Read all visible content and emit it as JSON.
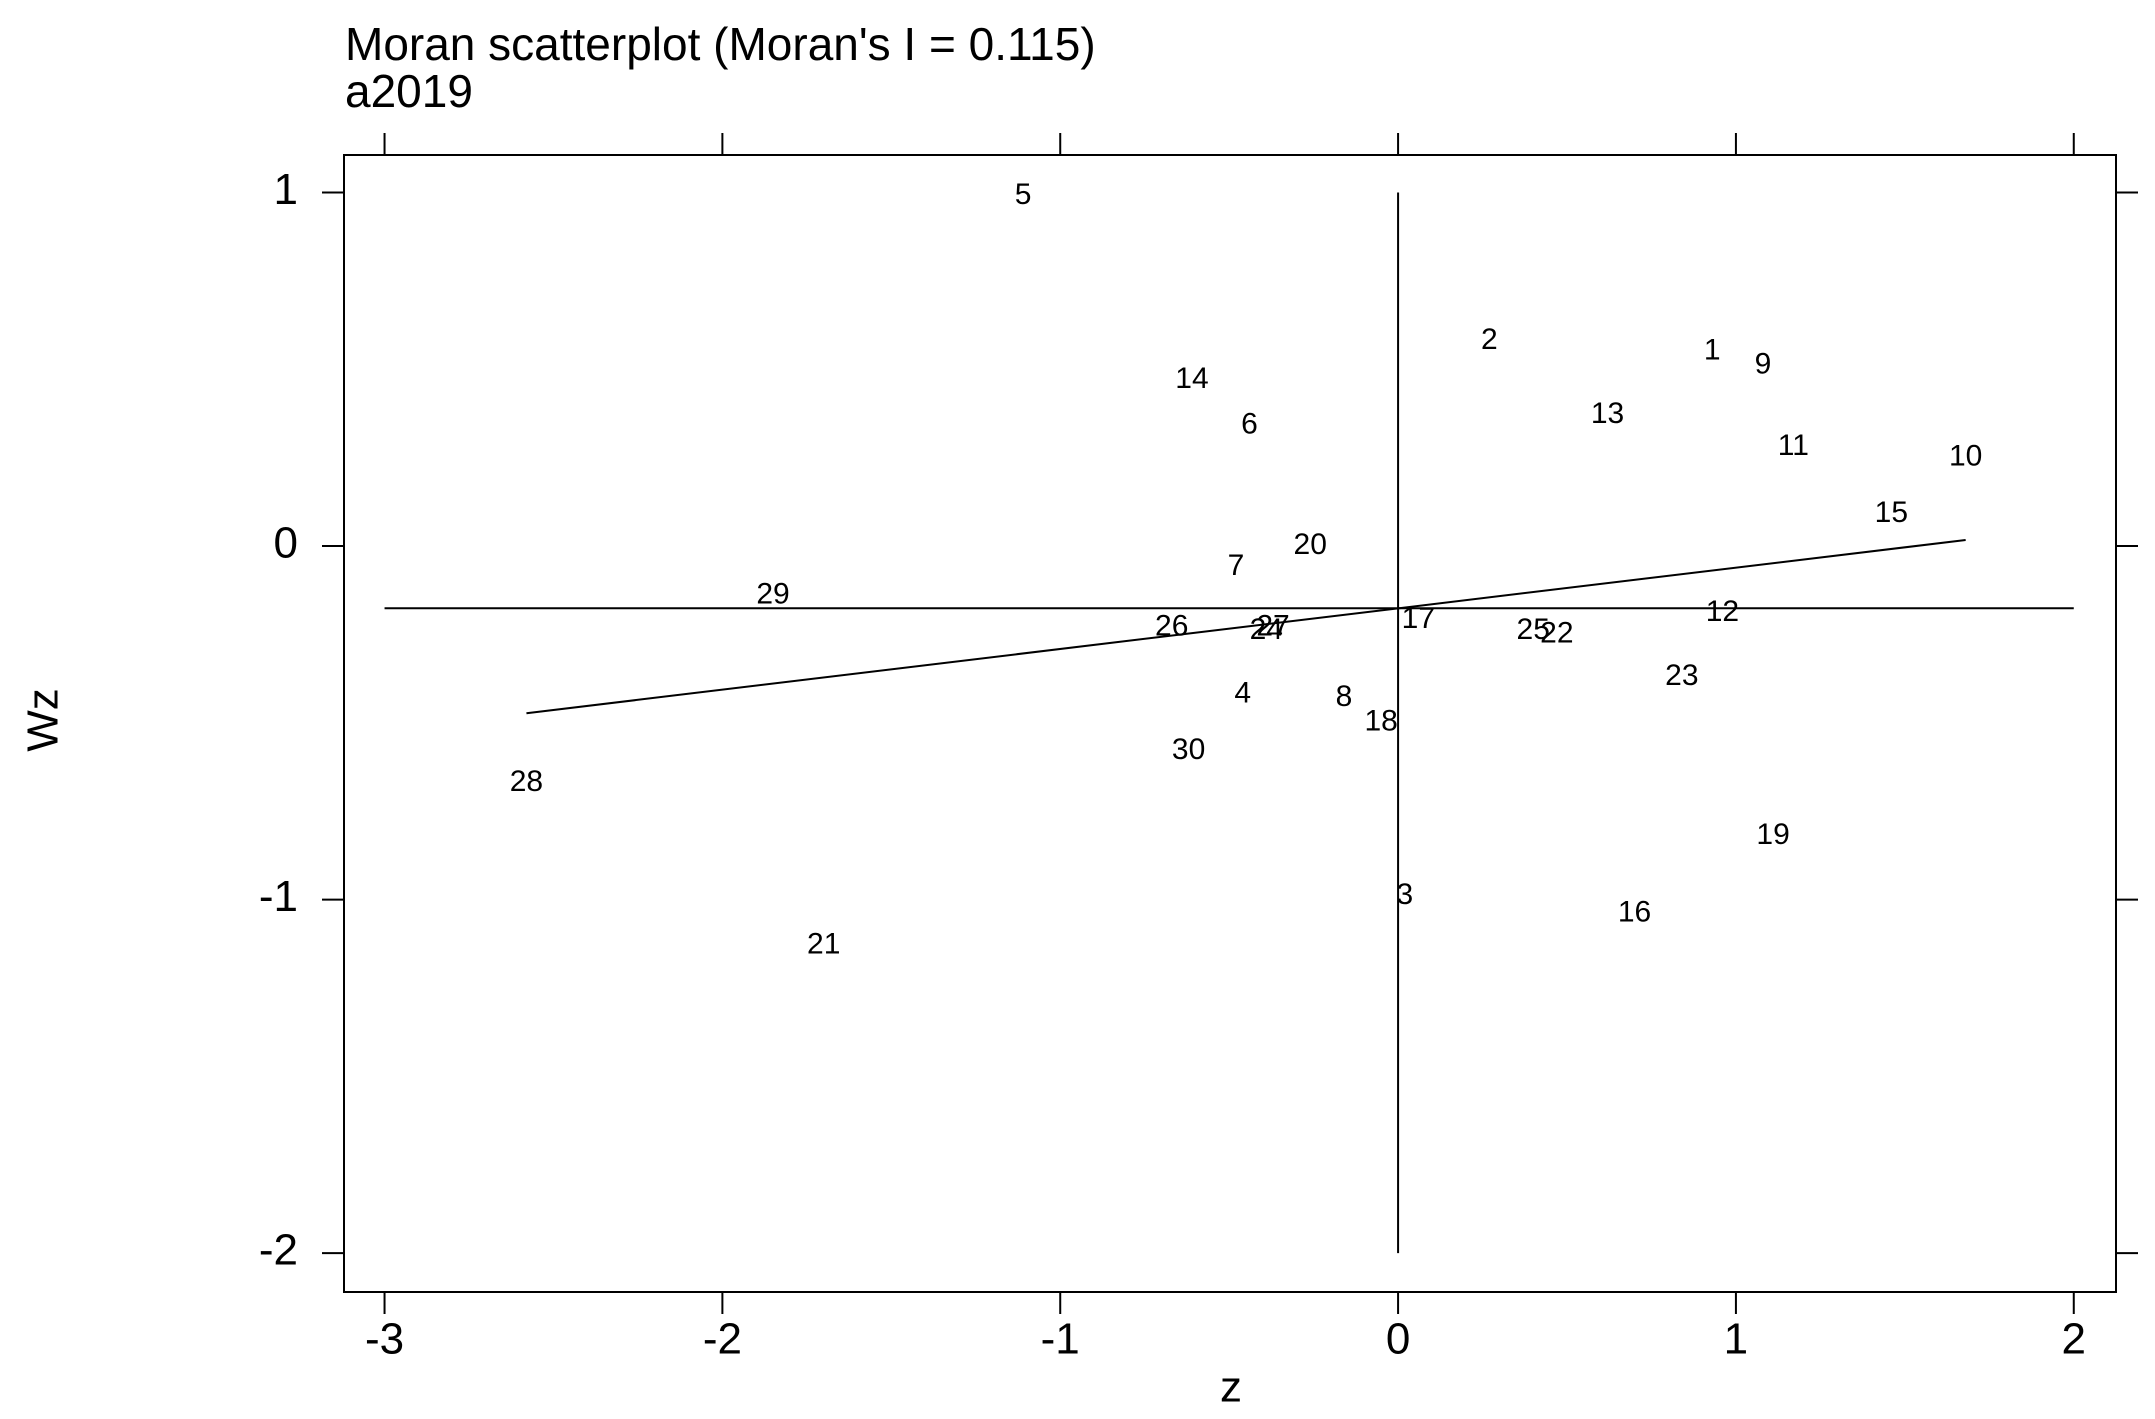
{
  "chart_data": {
    "type": "scatter",
    "title": "Moran scatterplot (Moran's I = 0.115)",
    "subtitle": "a2019",
    "x_label": "z",
    "y_label": "Wz",
    "labels": [
      "1",
      "2",
      "3",
      "4",
      "5",
      "6",
      "7",
      "8",
      "9",
      "10",
      "11",
      "12",
      "13",
      "14",
      "15",
      "16",
      "17",
      "18",
      "19",
      "20",
      "21",
      "22",
      "23",
      "24",
      "25",
      "26",
      "27",
      "28",
      "29",
      "30"
    ],
    "x": [
      0.93,
      0.27,
      0.02,
      -0.46,
      -1.11,
      -0.44,
      -0.48,
      -0.16,
      1.08,
      1.68,
      1.17,
      0.96,
      0.62,
      -0.61,
      1.46,
      0.7,
      0.06,
      -0.05,
      1.11,
      -0.26,
      -1.7,
      0.47,
      0.84,
      -0.39,
      0.4,
      -0.67,
      -0.37,
      -2.58,
      -1.85,
      -0.62
    ],
    "y": [
      0.55,
      0.58,
      -0.99,
      -0.42,
      0.99,
      0.34,
      -0.06,
      -0.43,
      0.51,
      0.25,
      0.28,
      -0.19,
      0.37,
      0.47,
      0.09,
      -1.04,
      -0.21,
      -0.5,
      -0.82,
      0.0,
      -1.13,
      -0.25,
      -0.37,
      -0.24,
      -0.24,
      -0.23,
      -0.23,
      -0.67,
      -0.14,
      -0.58
    ],
    "hline": -0.176,
    "vline": 0,
    "fit_line": {
      "x": [
        -2.58,
        1.68
      ],
      "y": [
        -0.473,
        0.017
      ]
    },
    "xlim": [
      -3.12,
      2.125
    ],
    "ylim": [
      -2.11,
      1.106
    ],
    "xticks": [
      -3,
      -2,
      -1,
      0,
      1,
      2
    ],
    "yticks": [
      -2,
      -1,
      0,
      1
    ]
  }
}
